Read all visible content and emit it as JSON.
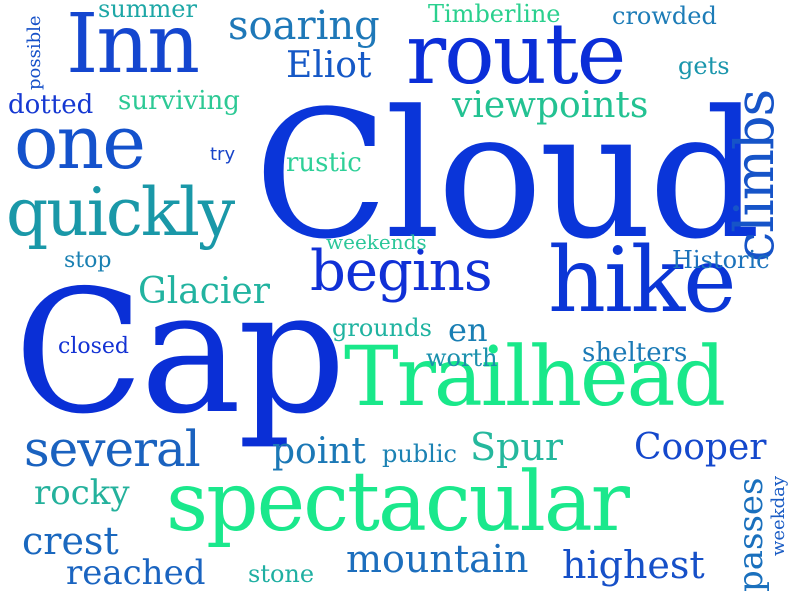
{
  "palette": {
    "deep_blue": "#0a2fd6",
    "royal_blue": "#1346d2",
    "mid_blue": "#1a6cc0",
    "teal": "#1998a8",
    "sea_green": "#22c49a",
    "spring_green": "#19e88a"
  },
  "words": [
    {
      "text": "Cloud",
      "color": "#0a35d9"
    },
    {
      "text": "Cap",
      "color": "#0a2fd6"
    },
    {
      "text": "Trailhead",
      "color": "#19e88a"
    },
    {
      "text": "spectacular",
      "color": "#1ae88c"
    },
    {
      "text": "route",
      "color": "#0b2ed8"
    },
    {
      "text": "hike",
      "color": "#0b36d6"
    },
    {
      "text": "Inn",
      "color": "#1446cf"
    },
    {
      "text": "one",
      "color": "#1452cc"
    },
    {
      "text": "quickly",
      "color": "#1a98a8"
    },
    {
      "text": "begins",
      "color": "#1030d6"
    },
    {
      "text": "climbs",
      "color": "#1654c8"
    },
    {
      "text": "several",
      "color": "#1a62bf"
    },
    {
      "text": "soaring",
      "color": "#1e78b8"
    },
    {
      "text": "viewpoints",
      "color": "#23c292"
    },
    {
      "text": "Eliot",
      "color": "#1558c6"
    },
    {
      "text": "Glacier",
      "color": "#22b3a0"
    },
    {
      "text": "Cooper",
      "color": "#1448cc"
    },
    {
      "text": "point",
      "color": "#1b78b6"
    },
    {
      "text": "Spur",
      "color": "#25b89d"
    },
    {
      "text": "mountain",
      "color": "#1c6ebd"
    },
    {
      "text": "highest",
      "color": "#1650c8"
    },
    {
      "text": "crest",
      "color": "#1a68bf"
    },
    {
      "text": "rocky",
      "color": "#24b19c"
    },
    {
      "text": "reached",
      "color": "#1a64c0"
    },
    {
      "text": "passes",
      "color": "#1a70bd"
    },
    {
      "text": "summer",
      "color": "#1da7a6"
    },
    {
      "text": "Timberline",
      "color": "#2ad08e"
    },
    {
      "text": "crowded",
      "color": "#1d7cb7"
    },
    {
      "text": "possible",
      "color": "#1550c8"
    },
    {
      "text": "dotted",
      "color": "#1538d2"
    },
    {
      "text": "surviving",
      "color": "#2dc995"
    },
    {
      "text": "gets",
      "color": "#1a96ac"
    },
    {
      "text": "try",
      "color": "#1844c9"
    },
    {
      "text": "rustic",
      "color": "#2ed098"
    },
    {
      "text": "weekends",
      "color": "#2cc79a"
    },
    {
      "text": "stop",
      "color": "#1a80b2"
    },
    {
      "text": "Historic",
      "color": "#1c72bb"
    },
    {
      "text": "grounds",
      "color": "#1fb3a0"
    },
    {
      "text": "en",
      "color": "#1a7fb4"
    },
    {
      "text": "closed",
      "color": "#1332d4"
    },
    {
      "text": "worth",
      "color": "#1a90ad"
    },
    {
      "text": "shelters",
      "color": "#1b7ab6"
    },
    {
      "text": "public",
      "color": "#1b82b3"
    },
    {
      "text": "stone",
      "color": "#1fafa2"
    },
    {
      "text": "weekday",
      "color": "#1a5cc4"
    }
  ]
}
